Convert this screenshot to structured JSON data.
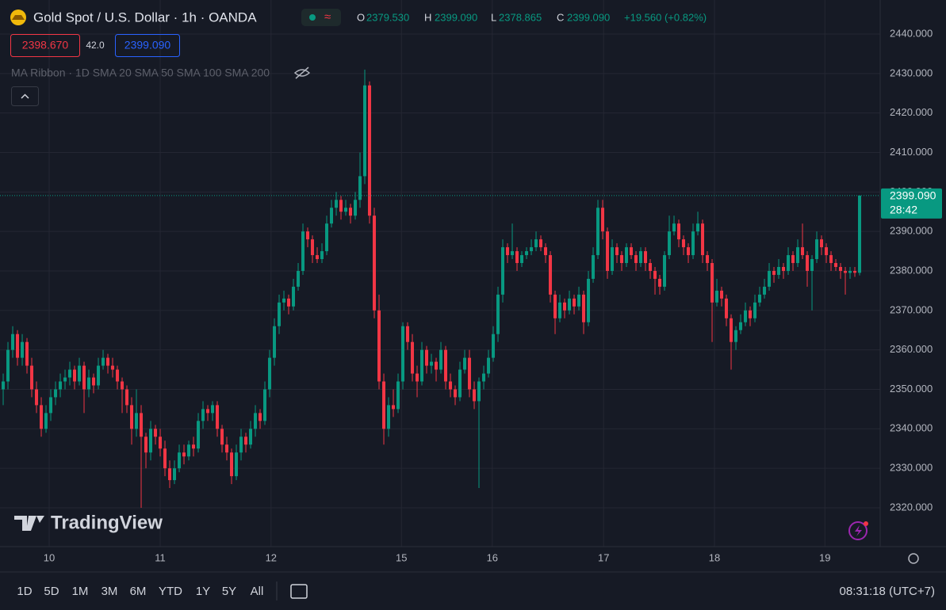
{
  "header": {
    "title": "Gold Spot / U.S. Dollar · 1h · OANDA",
    "o": "O",
    "open": "2379.530",
    "h": "H",
    "high": "2399.090",
    "l": "L",
    "low": "2378.865",
    "c": "C",
    "close": "2399.090",
    "change": "+19.560 (+0.82%)",
    "bid": "2398.670",
    "spread": "42.0",
    "ask": "2399.090",
    "indicator": "MA Ribbon · 1D SMA 20 SMA 50 SMA 100 SMA 200",
    "logo": "TradingView"
  },
  "toolbar": {
    "ranges": [
      "1D",
      "5D",
      "1M",
      "3M",
      "6M",
      "YTD",
      "1Y",
      "5Y",
      "All"
    ],
    "clock": "08:31:18 (UTC+7)"
  },
  "chart_data": {
    "type": "candlestick",
    "up_color": "#089981",
    "down_color": "#f23645",
    "grid": true,
    "last_price": 2399.09,
    "last_price_label": "2399.090",
    "countdown": "28:42",
    "ylim": [
      2310.16,
      2448.63
    ],
    "yticks": [
      {
        "value": 2320,
        "label": "2320.000"
      },
      {
        "value": 2330,
        "label": "2330.000"
      },
      {
        "value": 2340,
        "label": "2340.000"
      },
      {
        "value": 2350,
        "label": "2350.000"
      },
      {
        "value": 2360,
        "label": "2360.000"
      },
      {
        "value": 2370,
        "label": "2370.000"
      },
      {
        "value": 2380,
        "label": "2380.000"
      },
      {
        "value": 2390,
        "label": "2390.000"
      },
      {
        "value": 2400,
        "label": "2400.000"
      },
      {
        "value": 2410,
        "label": "2410.000"
      },
      {
        "value": 2420,
        "label": "2420.000"
      },
      {
        "value": 2430,
        "label": "2430.000"
      },
      {
        "value": 2440,
        "label": "2440.000"
      }
    ],
    "xlim": [
      -0.67,
      184.33
    ],
    "xticks": [
      {
        "value": 9.67,
        "label": "10"
      },
      {
        "value": 33,
        "label": "11"
      },
      {
        "value": 56.3,
        "label": "12"
      },
      {
        "value": 83.7,
        "label": "15"
      },
      {
        "value": 102.8,
        "label": "16"
      },
      {
        "value": 126.2,
        "label": "17"
      },
      {
        "value": 149.5,
        "label": "18"
      },
      {
        "value": 172.7,
        "label": "19"
      }
    ],
    "ohlc": [
      [
        2350,
        2354,
        2346,
        2352
      ],
      [
        2352,
        2362,
        2350,
        2360
      ],
      [
        2360,
        2366,
        2358,
        2364
      ],
      [
        2364,
        2365,
        2356,
        2358
      ],
      [
        2358,
        2364,
        2356,
        2362
      ],
      [
        2362,
        2363,
        2354,
        2356
      ],
      [
        2356,
        2358,
        2348,
        2350
      ],
      [
        2350,
        2352,
        2344,
        2346
      ],
      [
        2346,
        2348,
        2338,
        2340
      ],
      [
        2340,
        2346,
        2339,
        2344
      ],
      [
        2344,
        2350,
        2342,
        2348
      ],
      [
        2348,
        2352,
        2346,
        2350
      ],
      [
        2350,
        2354,
        2348,
        2352
      ],
      [
        2352,
        2355,
        2350,
        2353
      ],
      [
        2353,
        2357,
        2351,
        2355
      ],
      [
        2355,
        2356,
        2350,
        2352
      ],
      [
        2352,
        2358,
        2351,
        2356
      ],
      [
        2356,
        2357,
        2344,
        2350
      ],
      [
        2350,
        2355,
        2348,
        2353
      ],
      [
        2353,
        2354,
        2349,
        2351
      ],
      [
        2351,
        2358,
        2350,
        2356
      ],
      [
        2356,
        2360,
        2355,
        2358
      ],
      [
        2358,
        2359,
        2354,
        2356
      ],
      [
        2356,
        2358,
        2353,
        2355
      ],
      [
        2355,
        2356,
        2350,
        2352
      ],
      [
        2352,
        2353,
        2344,
        2350
      ],
      [
        2350,
        2351,
        2344,
        2346
      ],
      [
        2346,
        2348,
        2336,
        2340
      ],
      [
        2340,
        2350,
        2338,
        2344
      ],
      [
        2344,
        2346,
        2320,
        2338
      ],
      [
        2338,
        2339,
        2330,
        2334
      ],
      [
        2334,
        2342,
        2332,
        2340
      ],
      [
        2340,
        2341,
        2336,
        2338
      ],
      [
        2338,
        2340,
        2333,
        2335
      ],
      [
        2335,
        2337,
        2328,
        2330
      ],
      [
        2330,
        2332,
        2325,
        2327
      ],
      [
        2327,
        2332,
        2326,
        2330
      ],
      [
        2330,
        2336,
        2329,
        2334
      ],
      [
        2334,
        2336,
        2331,
        2333
      ],
      [
        2333,
        2337,
        2332,
        2336
      ],
      [
        2336,
        2338,
        2333,
        2335
      ],
      [
        2335,
        2344,
        2334,
        2342
      ],
      [
        2342,
        2347,
        2340,
        2345
      ],
      [
        2345,
        2346,
        2342,
        2344
      ],
      [
        2344,
        2347,
        2342,
        2346
      ],
      [
        2346,
        2347,
        2338,
        2340
      ],
      [
        2340,
        2341,
        2334,
        2336
      ],
      [
        2336,
        2338,
        2332,
        2334
      ],
      [
        2334,
        2335,
        2326,
        2328
      ],
      [
        2328,
        2336,
        2327,
        2334
      ],
      [
        2334,
        2340,
        2332,
        2338
      ],
      [
        2338,
        2339,
        2334,
        2336
      ],
      [
        2336,
        2342,
        2335,
        2340
      ],
      [
        2340,
        2346,
        2338,
        2344
      ],
      [
        2344,
        2345,
        2340,
        2342
      ],
      [
        2342,
        2352,
        2341,
        2350
      ],
      [
        2350,
        2360,
        2348,
        2358
      ],
      [
        2358,
        2368,
        2356,
        2366
      ],
      [
        2366,
        2374,
        2364,
        2372
      ],
      [
        2372,
        2375,
        2370,
        2373
      ],
      [
        2373,
        2374,
        2369,
        2371
      ],
      [
        2371,
        2378,
        2370,
        2376
      ],
      [
        2376,
        2382,
        2375,
        2380
      ],
      [
        2380,
        2392,
        2379,
        2390
      ],
      [
        2390,
        2391,
        2386,
        2388
      ],
      [
        2388,
        2389,
        2382,
        2384
      ],
      [
        2384,
        2386,
        2382,
        2383
      ],
      [
        2383,
        2387,
        2382,
        2385
      ],
      [
        2385,
        2394,
        2384,
        2392
      ],
      [
        2392,
        2398,
        2391,
        2396
      ],
      [
        2396,
        2400,
        2394,
        2398
      ],
      [
        2398,
        2399,
        2393,
        2395
      ],
      [
        2395,
        2398,
        2394,
        2396
      ],
      [
        2396,
        2397,
        2392,
        2394
      ],
      [
        2394,
        2400,
        2393,
        2398
      ],
      [
        2398,
        2410,
        2396,
        2404
      ],
      [
        2404,
        2431,
        2402,
        2427
      ],
      [
        2427,
        2428,
        2392,
        2394
      ],
      [
        2394,
        2396,
        2368,
        2370
      ],
      [
        2370,
        2374,
        2350,
        2352
      ],
      [
        2352,
        2354,
        2336,
        2340
      ],
      [
        2340,
        2348,
        2338,
        2346
      ],
      [
        2346,
        2350,
        2343,
        2345
      ],
      [
        2345,
        2354,
        2344,
        2352
      ],
      [
        2352,
        2367,
        2350,
        2366
      ],
      [
        2366,
        2367,
        2360,
        2362
      ],
      [
        2362,
        2364,
        2352,
        2354
      ],
      [
        2354,
        2356,
        2348,
        2352
      ],
      [
        2352,
        2362,
        2351,
        2360
      ],
      [
        2360,
        2361,
        2354,
        2356
      ],
      [
        2356,
        2359,
        2354,
        2357
      ],
      [
        2357,
        2358,
        2352,
        2355
      ],
      [
        2355,
        2362,
        2354,
        2360
      ],
      [
        2360,
        2361,
        2350,
        2352
      ],
      [
        2352,
        2354,
        2348,
        2350
      ],
      [
        2350,
        2351,
        2346,
        2348
      ],
      [
        2348,
        2357,
        2347,
        2355
      ],
      [
        2355,
        2360,
        2354,
        2358
      ],
      [
        2358,
        2360,
        2348,
        2350
      ],
      [
        2350,
        2352,
        2345,
        2347
      ],
      [
        2347,
        2353,
        2325,
        2352
      ],
      [
        2352,
        2356,
        2350,
        2354
      ],
      [
        2354,
        2360,
        2353,
        2358
      ],
      [
        2358,
        2366,
        2357,
        2364
      ],
      [
        2364,
        2376,
        2362,
        2374
      ],
      [
        2374,
        2388,
        2372,
        2386
      ],
      [
        2386,
        2387,
        2382,
        2384
      ],
      [
        2384,
        2392,
        2383,
        2385
      ],
      [
        2385,
        2386,
        2380,
        2382
      ],
      [
        2382,
        2385,
        2381,
        2384
      ],
      [
        2384,
        2386,
        2383,
        2385
      ],
      [
        2385,
        2388,
        2384,
        2386
      ],
      [
        2386,
        2390,
        2385,
        2388
      ],
      [
        2388,
        2389,
        2385,
        2386
      ],
      [
        2386,
        2387,
        2382,
        2384
      ],
      [
        2384,
        2385,
        2372,
        2374
      ],
      [
        2374,
        2375,
        2364,
        2368
      ],
      [
        2368,
        2374,
        2367,
        2372
      ],
      [
        2372,
        2373,
        2368,
        2370
      ],
      [
        2370,
        2375,
        2369,
        2373
      ],
      [
        2373,
        2374,
        2369,
        2371
      ],
      [
        2371,
        2376,
        2370,
        2374
      ],
      [
        2374,
        2375,
        2364,
        2367
      ],
      [
        2367,
        2380,
        2366,
        2378
      ],
      [
        2378,
        2386,
        2377,
        2384
      ],
      [
        2384,
        2398,
        2383,
        2396
      ],
      [
        2396,
        2398,
        2388,
        2390
      ],
      [
        2390,
        2391,
        2378,
        2380
      ],
      [
        2380,
        2388,
        2379,
        2386
      ],
      [
        2386,
        2387,
        2382,
        2384
      ],
      [
        2384,
        2385,
        2380,
        2382
      ],
      [
        2382,
        2387,
        2381,
        2386
      ],
      [
        2386,
        2387,
        2383,
        2384
      ],
      [
        2384,
        2385,
        2380,
        2382
      ],
      [
        2382,
        2386,
        2381,
        2385
      ],
      [
        2385,
        2386,
        2380,
        2382
      ],
      [
        2382,
        2383,
        2378,
        2380
      ],
      [
        2380,
        2381,
        2374,
        2378
      ],
      [
        2378,
        2379,
        2374,
        2376
      ],
      [
        2376,
        2385,
        2375,
        2384
      ],
      [
        2384,
        2394,
        2383,
        2390
      ],
      [
        2390,
        2394,
        2389,
        2392
      ],
      [
        2392,
        2393,
        2386,
        2388
      ],
      [
        2388,
        2389,
        2384,
        2386
      ],
      [
        2386,
        2387,
        2382,
        2384
      ],
      [
        2384,
        2392,
        2383,
        2390
      ],
      [
        2390,
        2395,
        2389,
        2392
      ],
      [
        2392,
        2393,
        2382,
        2384
      ],
      [
        2384,
        2385,
        2380,
        2382
      ],
      [
        2382,
        2383,
        2362,
        2372
      ],
      [
        2372,
        2378,
        2371,
        2375
      ],
      [
        2375,
        2376,
        2371,
        2373
      ],
      [
        2373,
        2374,
        2366,
        2368
      ],
      [
        2368,
        2369,
        2355,
        2362
      ],
      [
        2362,
        2366,
        2360,
        2365
      ],
      [
        2365,
        2369,
        2364,
        2367
      ],
      [
        2367,
        2372,
        2366,
        2370
      ],
      [
        2370,
        2371,
        2366,
        2368
      ],
      [
        2368,
        2374,
        2367,
        2372
      ],
      [
        2372,
        2376,
        2371,
        2374
      ],
      [
        2374,
        2378,
        2373,
        2376
      ],
      [
        2376,
        2382,
        2375,
        2380
      ],
      [
        2380,
        2381,
        2377,
        2379
      ],
      [
        2379,
        2383,
        2378,
        2381
      ],
      [
        2381,
        2382,
        2378,
        2380
      ],
      [
        2380,
        2386,
        2379,
        2384
      ],
      [
        2384,
        2385,
        2380,
        2382
      ],
      [
        2382,
        2388,
        2381,
        2386
      ],
      [
        2386,
        2392,
        2383,
        2384
      ],
      [
        2384,
        2385,
        2376,
        2380
      ],
      [
        2380,
        2384,
        2370,
        2383
      ],
      [
        2383,
        2390,
        2382,
        2388
      ],
      [
        2388,
        2389,
        2384,
        2386
      ],
      [
        2386,
        2387,
        2382,
        2384
      ],
      [
        2384,
        2385,
        2380,
        2382
      ],
      [
        2382,
        2383,
        2380,
        2381
      ],
      [
        2381,
        2382,
        2378,
        2380
      ],
      [
        2380,
        2381,
        2374,
        2379.5
      ],
      [
        2379.5,
        2381,
        2378,
        2380
      ],
      [
        2380,
        2381,
        2378.5,
        2379.53
      ],
      [
        2379.53,
        2399.09,
        2378.865,
        2399.09
      ]
    ]
  }
}
